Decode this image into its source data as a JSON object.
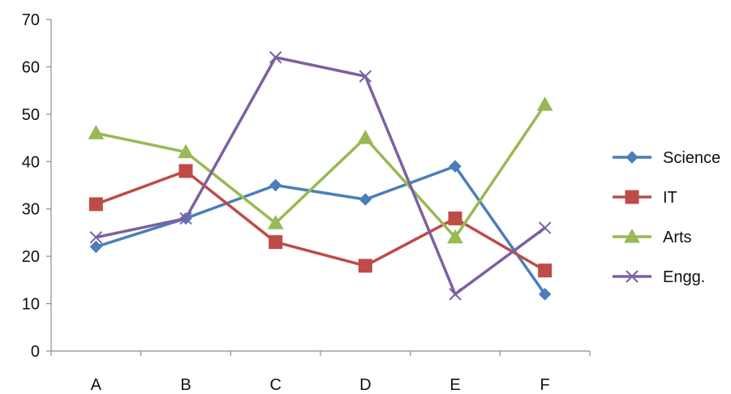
{
  "chart_data": {
    "type": "line",
    "categories": [
      "A",
      "B",
      "C",
      "D",
      "E",
      "F"
    ],
    "yticks": [
      "0",
      "10",
      "20",
      "30",
      "40",
      "50",
      "60",
      "70"
    ],
    "ylim": [
      0,
      70
    ],
    "grid": false,
    "legend_position": "right",
    "series": [
      {
        "name": "Science",
        "values": [
          22,
          28,
          35,
          32,
          39,
          12
        ],
        "color": "#4a7ebb",
        "marker": "diamond"
      },
      {
        "name": "IT",
        "values": [
          31,
          38,
          23,
          18,
          28,
          17
        ],
        "color": "#be4b48",
        "marker": "square"
      },
      {
        "name": "Arts",
        "values": [
          46,
          42,
          27,
          45,
          24,
          52
        ],
        "color": "#98b954",
        "marker": "triangle"
      },
      {
        "name": "Engg.",
        "values": [
          24,
          28,
          62,
          58,
          12,
          26
        ],
        "color": "#7d60a0",
        "marker": "x"
      }
    ]
  }
}
